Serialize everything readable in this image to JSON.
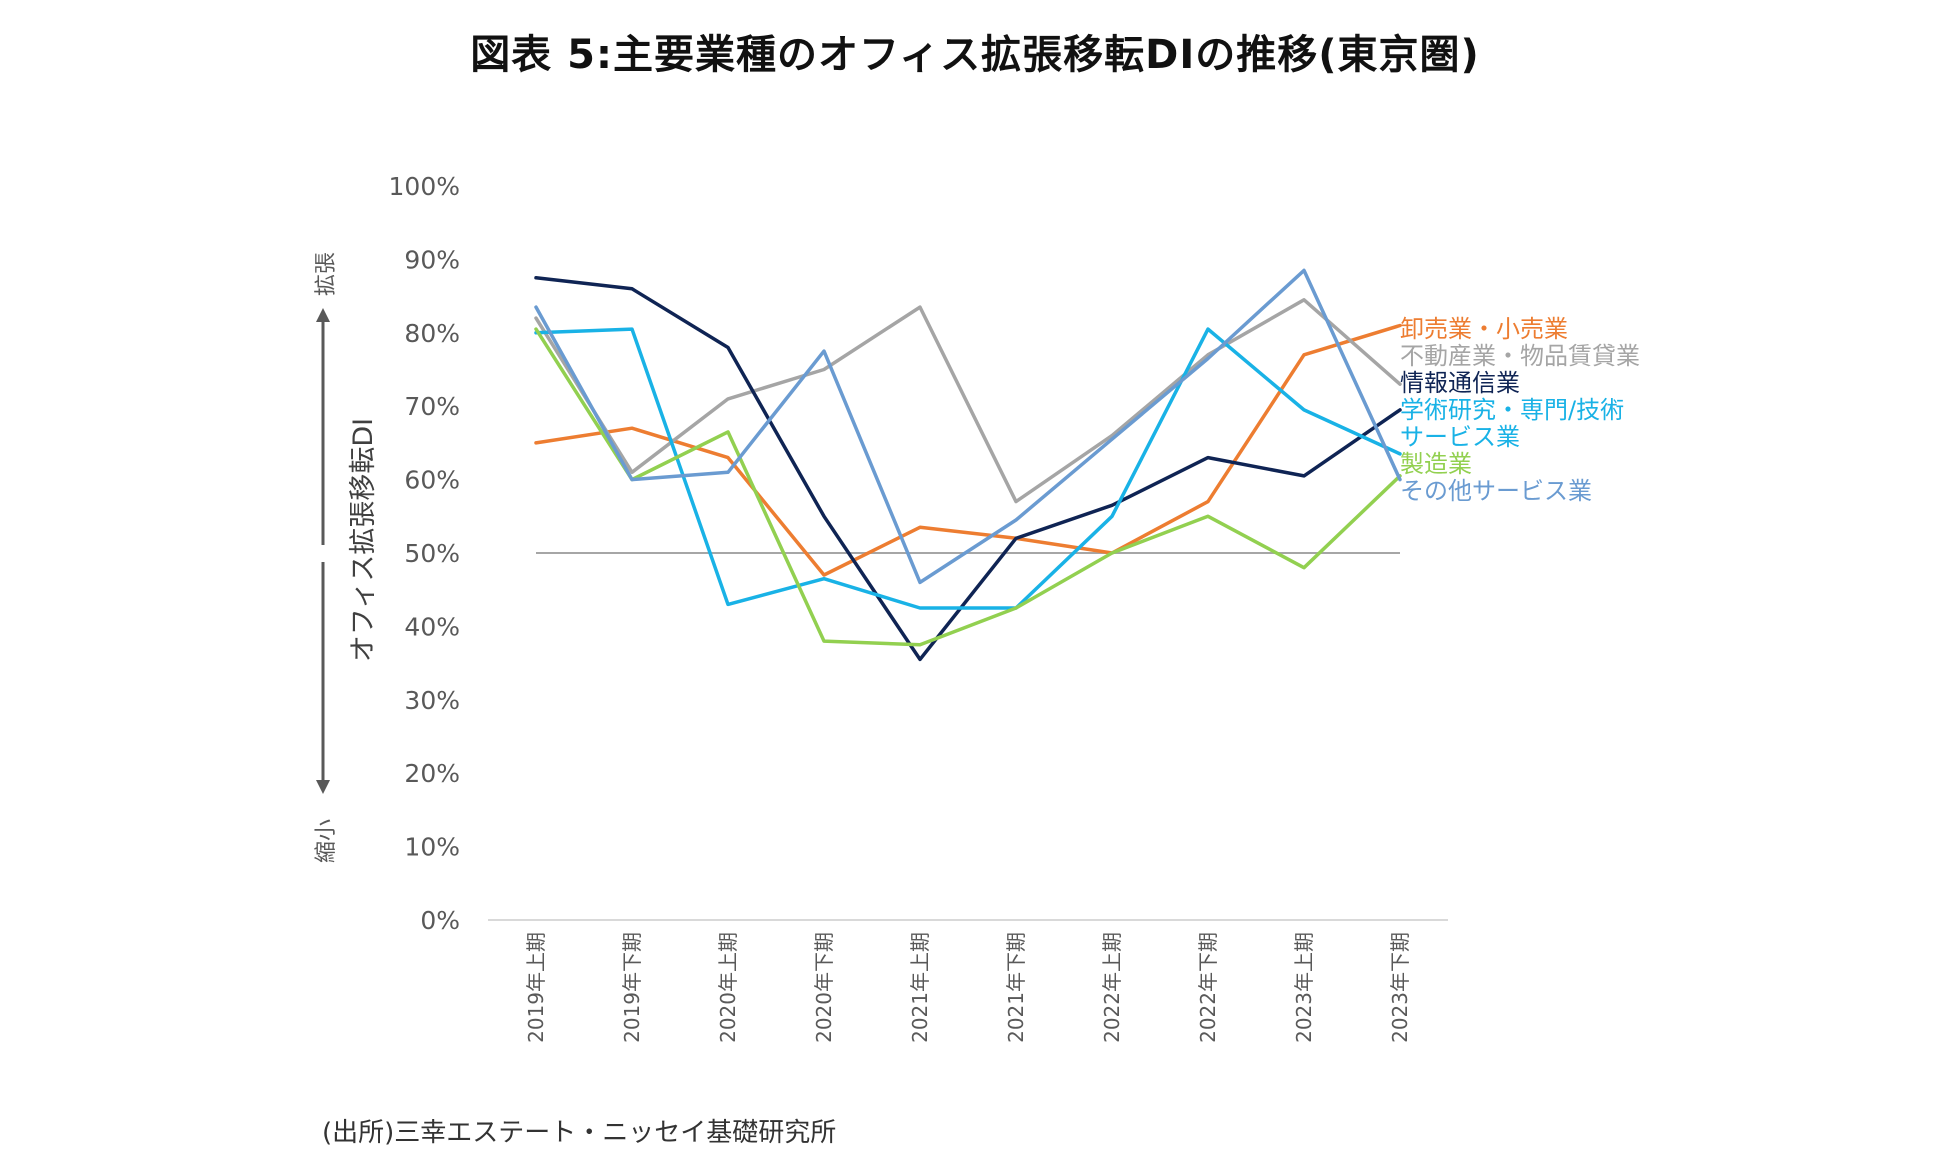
{
  "title": "図表 5:主要業種のオフィス拡張移転DIの推移(東京圏)",
  "source": "(出所)三幸エステート・ニッセイ基礎研究所",
  "axis_annotations": {
    "expand": "拡張",
    "shrink": "縮小"
  },
  "colors": {
    "wholesale_retail": "#ED7D31",
    "real_estate": "#A5A5A5",
    "ict": "#0F2454",
    "professional": "#19B2E6",
    "manufacturing": "#92D050",
    "other_services": "#6A9BD1",
    "baseline": "#A6A6A6"
  },
  "chart_data": {
    "type": "line",
    "title": "図表 5:主要業種のオフィス拡張移転DIの推移(東京圏)",
    "ylabel": "オフィス拡張移転DI",
    "xlabel": "",
    "ylim": [
      0,
      100
    ],
    "yticks": [
      "0%",
      "10%",
      "20%",
      "30%",
      "40%",
      "50%",
      "60%",
      "70%",
      "80%",
      "90%",
      "100%"
    ],
    "baseline": 50,
    "categories": [
      "2019年上期",
      "2019年下期",
      "2020年上期",
      "2020年下期",
      "2021年上期",
      "2021年下期",
      "2022年上期",
      "2022年下期",
      "2023年上期",
      "2023年下期"
    ],
    "series": [
      {
        "key": "wholesale_retail",
        "name": "卸売業・小売業",
        "values": [
          65,
          67,
          63,
          47,
          53.5,
          52,
          50,
          57,
          77,
          81
        ]
      },
      {
        "key": "real_estate",
        "name": "不動産業・物品賃貸業",
        "values": [
          82,
          61,
          71,
          75,
          83.5,
          57,
          66,
          77,
          84.5,
          73
        ]
      },
      {
        "key": "ict",
        "name": "情報通信業",
        "values": [
          87.5,
          86,
          78,
          55,
          35.5,
          52,
          56.5,
          63,
          60.5,
          69.5
        ]
      },
      {
        "key": "professional",
        "name": "学術研究・専門/技術サービス業",
        "values": [
          80,
          80.5,
          43,
          46.5,
          42.5,
          42.5,
          55,
          80.5,
          69.5,
          63.5
        ]
      },
      {
        "key": "manufacturing",
        "name": "製造業",
        "values": [
          80.5,
          60,
          66.5,
          38,
          37.5,
          42.5,
          50,
          55,
          48,
          60.5
        ]
      },
      {
        "key": "other_services",
        "name": "その他サービス業",
        "values": [
          83.5,
          60,
          61,
          77.5,
          46,
          54.5,
          65.5,
          76.5,
          88.5,
          60
        ]
      }
    ],
    "legend": [
      {
        "key": "wholesale_retail",
        "lines": [
          "卸売業・小売業"
        ]
      },
      {
        "key": "real_estate",
        "lines": [
          "不動産業・物品賃貸業"
        ]
      },
      {
        "key": "ict",
        "lines": [
          "情報通信業"
        ]
      },
      {
        "key": "professional",
        "lines": [
          "学術研究・専門/技術",
          "サービス業"
        ]
      },
      {
        "key": "manufacturing",
        "lines": [
          "製造業"
        ]
      },
      {
        "key": "other_services",
        "lines": [
          "その他サービス業"
        ]
      }
    ],
    "legend_placement": "right"
  }
}
